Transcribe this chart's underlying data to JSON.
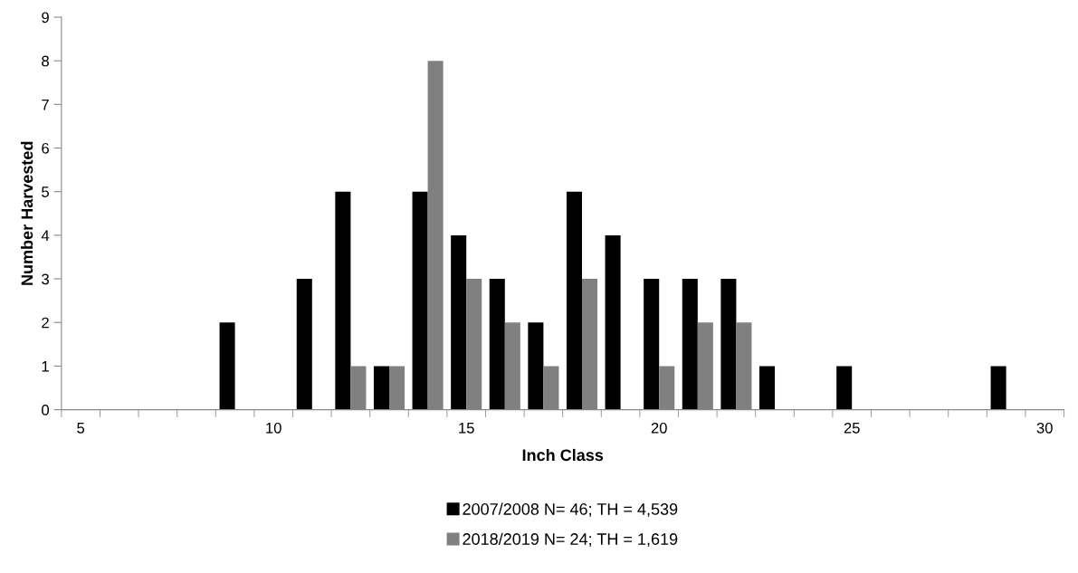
{
  "chart_data": {
    "type": "bar",
    "xlabel": "Inch Class",
    "ylabel": "Number Harvested",
    "categories": [
      "5",
      null,
      null,
      null,
      null,
      "10",
      null,
      null,
      null,
      null,
      "15",
      null,
      null,
      null,
      null,
      "20",
      null,
      null,
      null,
      null,
      "25",
      null,
      null,
      null,
      null,
      "30"
    ],
    "series": [
      {
        "name": "2007/2008 N= 46; TH = 4,539",
        "color": "#000000",
        "values": [
          0,
          0,
          0,
          0,
          2,
          0,
          3,
          5,
          1,
          5,
          4,
          3,
          2,
          5,
          4,
          3,
          3,
          3,
          1,
          0,
          1,
          0,
          0,
          0,
          1,
          0
        ]
      },
      {
        "name": "2018/2019 N= 24; TH = 1,619",
        "color": "#808080",
        "values": [
          0,
          0,
          0,
          0,
          0,
          0,
          0,
          1,
          1,
          8,
          3,
          2,
          1,
          3,
          0,
          1,
          2,
          2,
          0,
          0,
          0,
          0,
          0,
          0,
          0,
          0
        ]
      }
    ],
    "ylim": [
      0,
      9
    ],
    "yticks": [
      0,
      1,
      2,
      3,
      4,
      5,
      6,
      7,
      8,
      9
    ],
    "grid": false,
    "legend": "bottom"
  }
}
